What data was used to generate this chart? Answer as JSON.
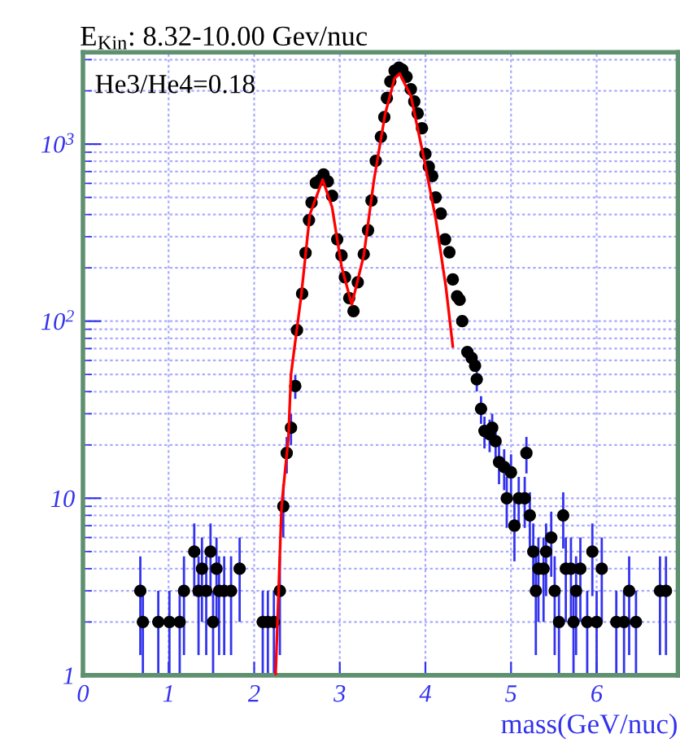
{
  "chart_data": {
    "type": "scatter",
    "title": "E$_{Kin}$: 8.32-10.00 Gev/nuc",
    "xlabel": "mass(GeV/nuc)",
    "annotations": [
      "He3/He4=0.18"
    ],
    "log": "y",
    "grid": true,
    "xlim": [
      0,
      6.95
    ],
    "xticks": [
      0,
      1,
      2,
      3,
      4,
      5,
      6
    ],
    "ylim": [
      1,
      3300
    ],
    "yticks": [
      1,
      10,
      {
        "value": 100,
        "label": "10$^{2}$"
      },
      {
        "value": 1000,
        "label": "10$^{3}$"
      }
    ],
    "series": [
      {
        "color": "#000000",
        "marker": "circle",
        "x": [
          0.67,
          0.7,
          0.88,
          1.01,
          1.13,
          1.18,
          1.3,
          1.35,
          1.39,
          1.44,
          1.49,
          1.52,
          1.56,
          1.59,
          1.65,
          1.73,
          1.83,
          2.1,
          2.16,
          2.23,
          2.3,
          2.34,
          2.38,
          2.43,
          2.48,
          2.5,
          2.56,
          2.6,
          2.64,
          2.67,
          2.72,
          2.77,
          2.81,
          2.86,
          2.91,
          2.97,
          3.02,
          3.06,
          3.11,
          3.16,
          3.21,
          3.28,
          3.33,
          3.37,
          3.42,
          3.48,
          3.52,
          3.55,
          3.59,
          3.64,
          3.69,
          3.73,
          3.78,
          3.83,
          3.87,
          3.91,
          3.96,
          4.0,
          4.04,
          4.08,
          4.12,
          4.18,
          4.23,
          4.28,
          4.32,
          4.37,
          4.4,
          4.43,
          4.49,
          4.54,
          4.58,
          4.6,
          4.65,
          4.69,
          4.75,
          4.78,
          4.82,
          4.86,
          4.92,
          4.95,
          5.0,
          5.04,
          5.09,
          5.16,
          5.18,
          5.22,
          5.26,
          5.29,
          5.32,
          5.38,
          5.41,
          5.47,
          5.51,
          5.56,
          5.61,
          5.64,
          5.7,
          5.73,
          5.76,
          5.81,
          5.89,
          5.95,
          6.0,
          6.06,
          6.23,
          6.32,
          6.38,
          6.46,
          6.74,
          6.81
        ],
        "values": [
          3,
          2,
          2,
          2,
          2,
          3,
          5,
          3,
          4,
          3,
          5,
          2,
          4,
          3,
          3,
          3,
          4,
          2,
          2,
          2,
          3,
          9,
          18,
          25,
          43,
          89,
          143,
          243,
          372,
          468,
          604,
          628,
          673,
          616,
          510,
          290,
          235,
          177,
          135,
          114,
          166,
          239,
          326,
          480,
          804,
          1100,
          1420,
          1820,
          2260,
          2600,
          2700,
          2630,
          2400,
          2040,
          1740,
          1490,
          1230,
          880,
          745,
          660,
          500,
          405,
          290,
          245,
          172,
          138,
          132,
          100,
          67,
          62,
          56,
          47,
          32,
          24,
          23,
          25,
          21,
          16,
          15,
          10,
          14,
          7,
          10,
          10,
          18,
          8,
          5,
          3,
          4,
          4,
          5,
          6,
          3,
          2,
          8,
          4,
          4,
          2,
          3,
          4,
          2,
          5,
          2,
          4,
          2,
          2,
          3,
          2,
          3,
          3
        ],
        "errors": [
          1.7,
          1,
          1,
          1,
          1,
          1.7,
          2.2,
          1.7,
          2,
          1.7,
          2.2,
          1,
          2,
          1.7,
          1.7,
          1.7,
          2,
          1,
          1,
          1,
          1.7,
          3,
          4.2,
          5,
          6.6,
          null,
          null,
          null,
          null,
          null,
          null,
          null,
          null,
          null,
          null,
          null,
          null,
          null,
          null,
          null,
          null,
          null,
          null,
          null,
          null,
          null,
          null,
          null,
          null,
          null,
          null,
          null,
          null,
          null,
          null,
          null,
          null,
          null,
          null,
          null,
          null,
          null,
          null,
          null,
          null,
          null,
          null,
          null,
          null,
          null,
          null,
          6.9,
          5.7,
          4.9,
          4.8,
          5,
          4.6,
          4,
          3.9,
          3.2,
          3.7,
          2.6,
          3.2,
          3.2,
          4.2,
          2.8,
          2.2,
          1.7,
          2,
          2,
          2.2,
          2.4,
          1.7,
          1,
          2.8,
          2,
          2,
          1,
          1.7,
          2,
          1,
          2.2,
          1,
          2,
          1,
          1,
          1.7,
          1,
          1.7,
          1.7
        ]
      },
      {
        "type": "line",
        "color": "#ff0000",
        "x": [
          2.25,
          2.32,
          2.4,
          2.43,
          2.55,
          2.65,
          2.8,
          2.91,
          3.02,
          3.14,
          3.28,
          3.4,
          3.53,
          3.64,
          3.7,
          3.83,
          3.97,
          4.12,
          4.24,
          4.32
        ],
        "values": [
          1,
          9,
          22,
          50,
          140,
          400,
          630,
          440,
          204,
          124,
          235,
          630,
          1480,
          2350,
          2500,
          1870,
          890,
          380,
          155,
          72
        ]
      }
    ]
  }
}
